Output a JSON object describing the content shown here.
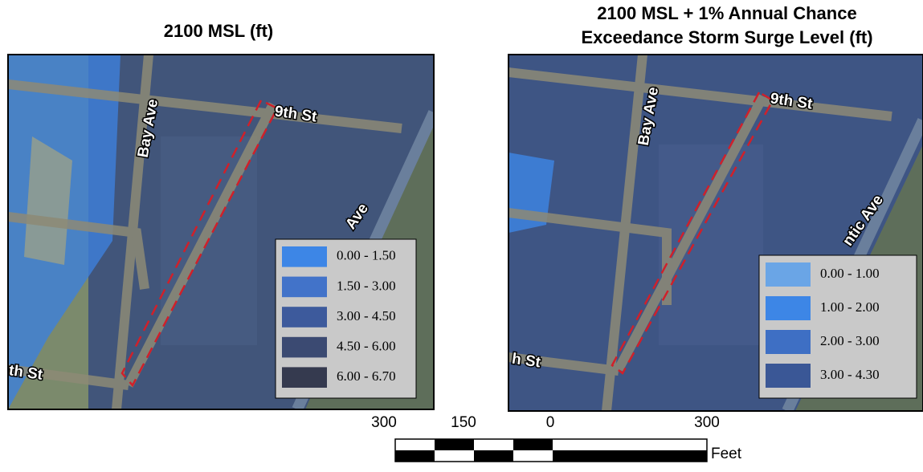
{
  "panels": [
    {
      "title": [
        "2100 MSL (ft)"
      ],
      "legend": [
        {
          "label": "0.00 - 1.50",
          "color": "#3d86e6"
        },
        {
          "label": "1.50 - 3.00",
          "color": "#4273c9"
        },
        {
          "label": "3.00 - 4.50",
          "color": "#3d5a9c"
        },
        {
          "label": "4.50 - 6.00",
          "color": "#3b4a72"
        },
        {
          "label": "6.00 - 6.70",
          "color": "#353a4f"
        }
      ],
      "streets": [
        "Bay Ave",
        "9th St",
        "Ave",
        "th St"
      ]
    },
    {
      "title": [
        "2100 MSL + 1% Annual Chance",
        "Exceedance Storm Surge Level (ft)"
      ],
      "legend": [
        {
          "label": "0.00 - 1.00",
          "color": "#6aa5e6"
        },
        {
          "label": "1.00 - 2.00",
          "color": "#3d86e6"
        },
        {
          "label": "2.00 - 3.00",
          "color": "#3e6fc4"
        },
        {
          "label": "3.00 - 4.30",
          "color": "#3a5796"
        }
      ],
      "streets": [
        "Bay Ave",
        "9th St",
        "ntic Ave",
        "h St"
      ]
    }
  ],
  "scale_bar": {
    "ticks": [
      "300",
      "150",
      "0",
      "300"
    ],
    "unit": "Feet"
  }
}
